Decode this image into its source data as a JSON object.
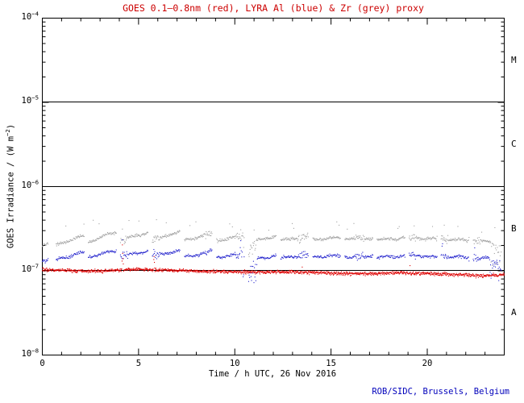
{
  "title": {
    "text": "GOES 0.1–0.8nm (red), LYRA Al (blue) & Zr (grey) proxy",
    "color": "#cc0000"
  },
  "footer": {
    "text": "ROB/SIDC, Brussels, Belgium",
    "color": "#0000bb"
  },
  "axes": {
    "x": {
      "label": "Time / h UTC, 26 Nov 2016",
      "min": 0,
      "max": 24,
      "major_ticks": [
        0,
        5,
        10,
        15,
        20
      ],
      "minor_step": 1
    },
    "y": {
      "label_prefix": "GOES Irradiance / (W m",
      "label_exponent": "-2",
      "label_suffix": ")",
      "scale": "log",
      "tick_labels": [
        {
          "base": "10",
          "exp": "-4"
        },
        {
          "base": "10",
          "exp": "-5"
        },
        {
          "base": "10",
          "exp": "-6"
        },
        {
          "base": "10",
          "exp": "-7"
        },
        {
          "base": "10",
          "exp": "-8"
        }
      ]
    },
    "right_classes": [
      {
        "label": "M",
        "mid_exp": -4.5
      },
      {
        "label": "C",
        "mid_exp": -5.5
      },
      {
        "label": "B",
        "mid_exp": -6.5
      },
      {
        "label": "A",
        "mid_exp": -7.5
      }
    ]
  },
  "reference_lines_wm2": [
    1e-05,
    1e-06,
    1e-07
  ],
  "chart_data": {
    "type": "scatter",
    "title": "GOES 0.1–0.8nm (red), LYRA Al (blue) & Zr (grey) proxy",
    "xlabel": "Time / h UTC, 26 Nov 2016",
    "ylabel": "GOES Irradiance / (W m^-2)",
    "xlim": [
      0,
      24
    ],
    "ylim_wm2": [
      1e-08,
      0.0001
    ],
    "y_scale": "log",
    "grid": "off",
    "legend": "in title (colors)",
    "value_unit": "1e-7 W m^-2",
    "segment_format": "[t_start_h, t_end_h, value_start, value_end] in units of 1e-7 W/m2; gaps between segments are PROBA2 orbit eclipses",
    "series": [
      {
        "key": "goes",
        "name": "GOES 0.1-0.8nm",
        "color": "#dd0000",
        "style": "dots",
        "base_points": [
          [
            0,
            1.03
          ],
          [
            1.5,
            1.0
          ],
          [
            3,
            0.99
          ],
          [
            4.7,
            1.04
          ],
          [
            6.5,
            1.02
          ],
          [
            8,
            0.99
          ],
          [
            10,
            0.97
          ],
          [
            11.5,
            0.96
          ],
          [
            12.5,
            0.97
          ],
          [
            14,
            0.96
          ],
          [
            15.5,
            0.93
          ],
          [
            17,
            0.92
          ],
          [
            18.5,
            0.95
          ],
          [
            20,
            0.93
          ],
          [
            21.5,
            0.9
          ],
          [
            23,
            0.87
          ],
          [
            24,
            0.9
          ]
        ]
      },
      {
        "key": "al",
        "name": "LYRA Al filter proxy",
        "color": "#2222cc",
        "style": "dots",
        "segments": [
          [
            0,
            0.3,
            1.3,
            1.36
          ],
          [
            0.72,
            2.17,
            1.34,
            1.66
          ],
          [
            2.39,
            3.84,
            1.44,
            1.76
          ],
          [
            4.06,
            5.51,
            1.48,
            1.72
          ],
          [
            5.72,
            7.17,
            1.5,
            1.72
          ],
          [
            7.39,
            8.84,
            1.46,
            1.66
          ],
          [
            9.06,
            10.51,
            1.44,
            1.6
          ],
          [
            10.72,
            12.17,
            1.3,
            1.52
          ],
          [
            12.39,
            13.84,
            1.42,
            1.55
          ],
          [
            14.06,
            15.51,
            1.45,
            1.52
          ],
          [
            15.72,
            17.17,
            1.46,
            1.5
          ],
          [
            17.39,
            18.84,
            1.44,
            1.5
          ],
          [
            19.06,
            20.51,
            1.5,
            1.46
          ],
          [
            20.72,
            22.17,
            1.48,
            1.44
          ],
          [
            22.39,
            23.84,
            1.46,
            1.35
          ]
        ]
      },
      {
        "key": "zr",
        "name": "LYRA Zr filter proxy",
        "color": "#a0a0a0",
        "style": "dots",
        "segments": [
          [
            0,
            0.3,
            2.0,
            2.08
          ],
          [
            0.72,
            2.17,
            2.02,
            2.62
          ],
          [
            2.39,
            3.84,
            2.18,
            2.92
          ],
          [
            4.06,
            5.51,
            2.3,
            2.85
          ],
          [
            5.72,
            7.17,
            2.35,
            2.9
          ],
          [
            7.39,
            8.84,
            2.28,
            2.8
          ],
          [
            9.06,
            10.51,
            2.25,
            2.65
          ],
          [
            10.72,
            12.17,
            2.2,
            2.55
          ],
          [
            12.39,
            13.84,
            2.3,
            2.55
          ],
          [
            14.06,
            15.51,
            2.35,
            2.5
          ],
          [
            15.72,
            17.17,
            2.4,
            2.45
          ],
          [
            17.39,
            18.84,
            2.35,
            2.45
          ],
          [
            19.06,
            20.51,
            2.45,
            2.4
          ],
          [
            20.72,
            22.17,
            2.4,
            2.3
          ],
          [
            22.39,
            23.84,
            2.35,
            2.1
          ]
        ]
      }
    ],
    "spike_events": [
      {
        "t": 4.16,
        "zr": 3.3,
        "al": 2.2,
        "goes": 2.0
      },
      {
        "t": 5.8,
        "zr": 2.8,
        "al": 1.95,
        "goes": 1.62
      },
      {
        "t": 8.78,
        "zr": 3.1,
        "al": 2.0
      },
      {
        "t": 10.3,
        "zr": 3.3,
        "al": 2.6
      },
      {
        "t": 13.5,
        "zr": 2.9,
        "al": 1.9,
        "goes": 1.18
      },
      {
        "t": 16.48,
        "zr": 2.9,
        "al": 1.8
      },
      {
        "t": 19.1,
        "zr": 2.6,
        "al": 1.75,
        "goes": 1.18
      },
      {
        "t": 20.78,
        "zr": 3.3,
        "al": 2.4
      },
      {
        "t": 22.45,
        "zr": 2.8,
        "al": 2.0
      }
    ],
    "dips": [
      {
        "series": "al",
        "t": [
          10.4,
          11.15
        ],
        "factor": 0.5
      },
      {
        "series": "zr",
        "t": [
          10.45,
          11.1
        ],
        "factor": 0.7
      },
      {
        "series": "al",
        "t": [
          23.25,
          23.84
        ],
        "factor": 0.55
      },
      {
        "series": "zr",
        "t": [
          23.3,
          23.84
        ],
        "factor": 0.5
      }
    ]
  }
}
